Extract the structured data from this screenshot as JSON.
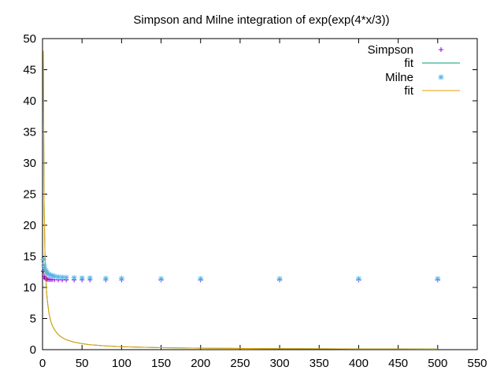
{
  "chart_data": {
    "type": "scatter",
    "title": "Simpson and Milne integration of exp(exp(4*x/3))",
    "xlabel": "",
    "ylabel": "",
    "xlim": [
      0,
      550
    ],
    "ylim": [
      0,
      50
    ],
    "xticks": [
      0,
      50,
      100,
      150,
      200,
      250,
      300,
      350,
      400,
      450,
      500,
      550
    ],
    "yticks": [
      0,
      5,
      10,
      15,
      20,
      25,
      30,
      35,
      40,
      45,
      50
    ],
    "grid": false,
    "legend_position": "top-right",
    "series": [
      {
        "name": "Simpson",
        "kind": "points",
        "marker": "plus",
        "color": "#9400d3",
        "x": [
          1,
          2,
          3,
          4,
          5,
          6,
          8,
          10,
          12,
          15,
          20,
          25,
          30,
          40,
          50,
          60,
          80,
          100,
          150,
          200,
          300,
          400,
          500
        ],
        "y": [
          12.6,
          11.8,
          11.5,
          11.4,
          11.35,
          11.3,
          11.27,
          11.25,
          11.24,
          11.23,
          11.22,
          11.21,
          11.21,
          11.2,
          11.2,
          11.2,
          11.2,
          11.2,
          11.2,
          11.2,
          11.2,
          11.2,
          11.2
        ]
      },
      {
        "name": "fit",
        "kind": "line",
        "color": "#009e73",
        "x": [
          1,
          2,
          3,
          4,
          5,
          6,
          8,
          10,
          12,
          15,
          20,
          25,
          30,
          40,
          50,
          60,
          80,
          100,
          150,
          200,
          300,
          400,
          500
        ],
        "y": [
          48,
          24,
          16,
          12,
          9.6,
          8,
          6,
          4.8,
          4,
          3.2,
          2.4,
          1.92,
          1.6,
          1.2,
          0.96,
          0.8,
          0.6,
          0.48,
          0.32,
          0.24,
          0.16,
          0.12,
          0.1
        ]
      },
      {
        "name": "Milne",
        "kind": "points",
        "marker": "star",
        "color": "#56b4e9",
        "x": [
          1,
          2,
          3,
          4,
          5,
          6,
          8,
          10,
          12,
          15,
          20,
          25,
          30,
          40,
          50,
          60,
          80,
          100,
          150,
          200,
          300,
          400,
          500
        ],
        "y": [
          14.5,
          13.6,
          13.0,
          12.7,
          12.5,
          12.3,
          12.1,
          12.0,
          11.9,
          11.8,
          11.7,
          11.65,
          11.6,
          11.55,
          11.5,
          11.5,
          11.45,
          11.45,
          11.4,
          11.4,
          11.4,
          11.4,
          11.4
        ]
      },
      {
        "name": "fit",
        "kind": "line",
        "color": "#e69f00",
        "x": [
          1,
          2,
          3,
          4,
          5,
          6,
          8,
          10,
          12,
          15,
          20,
          25,
          30,
          40,
          50,
          60,
          80,
          100,
          150,
          200,
          300,
          400,
          500
        ],
        "y": [
          48,
          24,
          16,
          12,
          9.6,
          8,
          6,
          4.8,
          4,
          3.2,
          2.4,
          1.92,
          1.6,
          1.2,
          0.96,
          0.8,
          0.6,
          0.48,
          0.32,
          0.24,
          0.16,
          0.12,
          0.1
        ]
      }
    ]
  }
}
